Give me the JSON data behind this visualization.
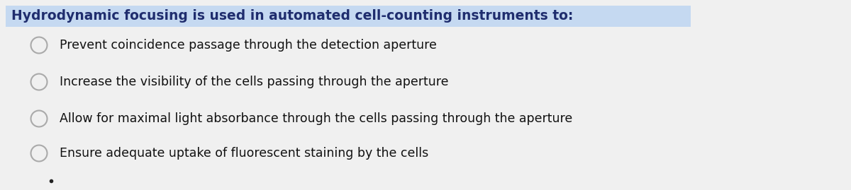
{
  "title": "Hydrodynamic focusing is used in automated cell-counting instruments to:",
  "title_bg_color": "#c5d9f1",
  "title_text_color": "#1f2d6e",
  "background_color": "#f0f0f0",
  "options": [
    "Prevent coincidence passage through the detection aperture",
    "Increase the visibility of the cells passing through the aperture",
    "Allow for maximal light absorbance through the cells passing through the aperture",
    "Ensure adequate uptake of fluorescent staining by the cells"
  ],
  "circle_color": "#aaaaaa",
  "circle_linewidth": 1.5,
  "option_text_color": "#111111",
  "title_fontsize": 13.5,
  "option_fontsize": 12.5,
  "fig_width": 12.0,
  "fig_height": 2.69
}
